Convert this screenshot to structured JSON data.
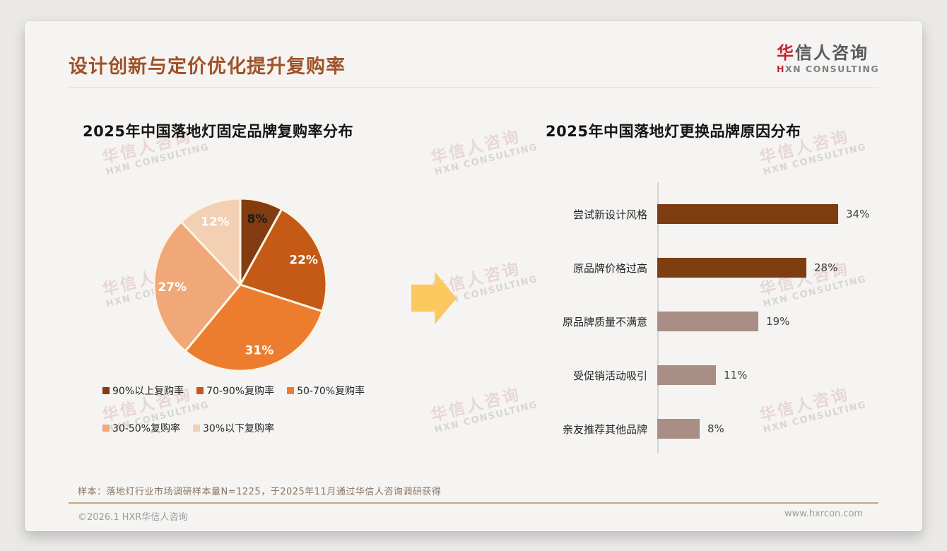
{
  "header": {
    "title": "设计创新与定价优化提升复购率"
  },
  "logo": {
    "cn_first": "华",
    "cn_rest": "信人咨询",
    "en_first": "H",
    "en_rest": "XN CONSULTING"
  },
  "watermark": {
    "line1": "华信人咨询",
    "line2": "HXN CONSULTING"
  },
  "colors": {
    "title": "#9F5228",
    "accent_red": "#C1272D",
    "arrow": "#FBC95F",
    "bar_dark": "#7E3D10",
    "bar_mauve": "#A88E85",
    "pie_stroke": "#FBF4E4"
  },
  "chart_data": [
    {
      "type": "pie",
      "title": "2025年中国落地灯固定品牌复购率分布",
      "labels": [
        "90%以上复购率",
        "70-90%复购率",
        "50-70%复购率",
        "30-50%复购率",
        "30%以下复购率"
      ],
      "values": [
        8,
        22,
        31,
        27,
        12
      ],
      "value_labels": [
        "8%",
        "22%",
        "31%",
        "27%",
        "12%"
      ],
      "colors": [
        "#833C10",
        "#C45A15",
        "#EC7D2F",
        "#F0A878",
        "#F3CFB4"
      ],
      "value_label_colors": [
        "#1A1A1A",
        "#FFFFFF",
        "#FFFFFF",
        "#FFFFFF",
        "#FFFFFF"
      ],
      "start_angle_deg": 0,
      "direction": "clockwise",
      "legend_position": "bottom",
      "legend_rows": [
        [
          0,
          1,
          2
        ],
        [
          3,
          4
        ]
      ]
    },
    {
      "type": "bar",
      "orientation": "horizontal",
      "title": "2025年中国落地灯更换品牌原因分布",
      "categories": [
        "尝试新设计风格",
        "原品牌价格过高",
        "原品牌质量不满意",
        "受促销活动吸引",
        "亲友推荐其他品牌"
      ],
      "values": [
        34,
        28,
        19,
        11,
        8
      ],
      "value_labels": [
        "34%",
        "28%",
        "19%",
        "11%",
        "8%"
      ],
      "bar_colors": [
        "#7E3D10",
        "#7E3D10",
        "#A88E85",
        "#A88E85",
        "#A88E85"
      ],
      "xlim": [
        0,
        40
      ],
      "grid": false,
      "value_suffix": "%"
    }
  ],
  "footer": {
    "note": "样本：落地灯行业市场调研样本量N=1225，于2025年11月通过华信人咨询调研获得",
    "copyright": "©2026.1 HXR华信人咨询",
    "website": "www.hxrcon.com"
  }
}
